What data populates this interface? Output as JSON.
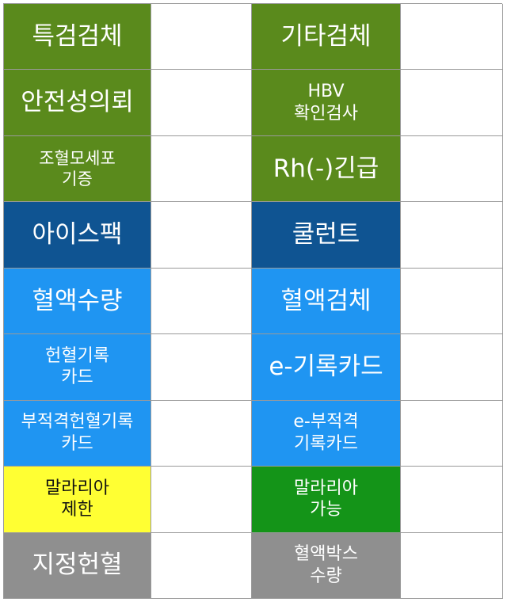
{
  "rows": [
    {
      "left": "특검검체",
      "right": "기타검체"
    },
    {
      "left": "안전성의뢰",
      "right": "HBV\n확인검사"
    },
    {
      "left": "조혈모세포\n기증",
      "right": "Rh(-)긴급"
    },
    {
      "left": "아이스팩",
      "right": "쿨런트"
    },
    {
      "left": "혈액수량",
      "right": "혈액검체"
    },
    {
      "left": "헌혈기록\n카드",
      "right": "e-기록카드"
    },
    {
      "left": "부적격헌혈기록\n카드",
      "right": "e-부적격\n기록카드"
    },
    {
      "left": "말라리아\n제한",
      "right": "말라리아\n가능"
    },
    {
      "left": "지정헌혈",
      "right": "혈액박스\n수량"
    }
  ],
  "colors": {
    "olive": "#5a8a1c",
    "navy": "#0f5492",
    "sky": "#1f95f2",
    "yellow": "#ffff33",
    "green": "#149418",
    "gray": "#8f8f8f"
  }
}
